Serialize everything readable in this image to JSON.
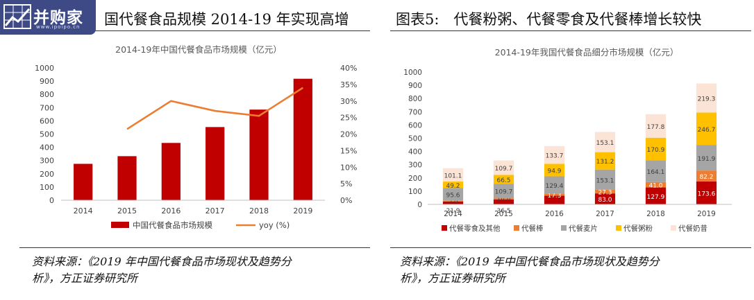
{
  "watermark": {
    "text": "并购家",
    "url": "www.ipoipo.cn"
  },
  "left": {
    "heading": "国代餐食品规模 2014-19 年实现高增",
    "source_line1": "资料来源：《2019 年中国代餐食品市场现状及趋势分",
    "source_line2": "析》，方正证券研究所"
  },
  "right": {
    "heading": "图表5:　代餐粉粥、代餐零食及代餐棒增长较快",
    "source_line1": "资料来源：《2019 年中国代餐食品市场现状及趋势分",
    "source_line2": "析》，方正证券研究所"
  },
  "colors": {
    "bar": "#c00000",
    "line": "#ed7d31",
    "axis": "#bfbfbf"
  },
  "chart_data": [
    {
      "type": "bar",
      "title": "2014-19年中国代餐食品市场规模（亿元）",
      "categories": [
        "2014",
        "2015",
        "2016",
        "2017",
        "2018",
        "2019"
      ],
      "series": [
        {
          "name": "中国代餐食品市场规模",
          "type": "bar",
          "axis": "left",
          "color": "#c00000",
          "values": [
            275,
            333,
            433,
            553,
            685,
            918
          ]
        },
        {
          "name": "yoy (%)",
          "type": "line",
          "axis": "right",
          "color": "#ed7d31",
          "values": [
            null,
            21.5,
            30.0,
            27.0,
            25.5,
            34.0
          ]
        }
      ],
      "ylim": [
        0,
        1000
      ],
      "y_ticks": [
        "0",
        "100",
        "200",
        "300",
        "400",
        "500",
        "600",
        "700",
        "800",
        "900",
        "1000"
      ],
      "y2lim": [
        0,
        40
      ],
      "y2_ticks": [
        "0%",
        "5%",
        "10%",
        "15%",
        "20%",
        "25%",
        "30%",
        "35%",
        "40%"
      ],
      "legend": "bottom",
      "grid": false
    },
    {
      "type": "bar",
      "stacked": true,
      "title": "2014-19年我国代餐食品细分市场规模（亿元）",
      "categories": [
        "2014",
        "2015",
        "2016",
        "2017",
        "2018",
        "2019"
      ],
      "series": [
        {
          "name": "代餐零食及其他",
          "color": "#c00000",
          "values": [
            21.9,
            36.5,
            65.2,
            83.0,
            127.9,
            173.6
          ],
          "labels": [
            "21.9",
            "36.5",
            "",
            "83.0",
            "127.9",
            "173.6"
          ]
        },
        {
          "name": "代餐棒",
          "color": "#ed7d31",
          "values": [
            5.8,
            10.0,
            17.3,
            27.3,
            41.0,
            82.2
          ],
          "labels": [
            "5.8",
            "10.0",
            "17.3",
            "27.3",
            "41.0",
            "82.2"
          ]
        },
        {
          "name": "代餐麦片",
          "color": "#a5a5a5",
          "values": [
            95.6,
            109.7,
            129.4,
            153.1,
            164.1,
            191.9
          ],
          "labels": [
            "95.6",
            "109.7",
            "129.4",
            "153.1",
            "164.1",
            "191.9"
          ]
        },
        {
          "name": "代餐粥粉",
          "color": "#ffc000",
          "values": [
            49.2,
            66.5,
            94.9,
            131.2,
            170.9,
            246.7
          ],
          "labels": [
            "49.2",
            "66.5",
            "94.9",
            "131.2",
            "170.9",
            "246.7"
          ]
        },
        {
          "name": "代餐奶昔",
          "color": "#fbe4d5",
          "values": [
            101.1,
            109.7,
            133.7,
            153.1,
            177.8,
            219.3
          ],
          "labels": [
            "101.1",
            "109.7",
            "133.7",
            "153.1",
            "177.8",
            "219.3"
          ]
        }
      ],
      "ylim": [
        0,
        1000
      ],
      "y_ticks": [
        "0",
        "100",
        "200",
        "300",
        "400",
        "500",
        "600",
        "700",
        "800",
        "900",
        "1000"
      ],
      "legend": "bottom",
      "grid": false
    }
  ]
}
